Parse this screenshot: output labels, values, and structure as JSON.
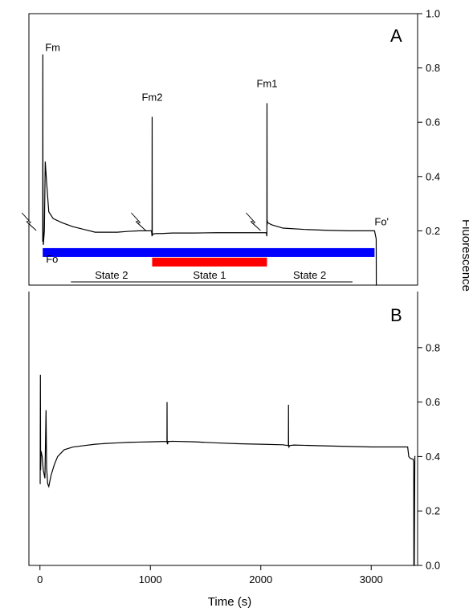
{
  "chart_data": {
    "type": "line",
    "xlabel": "Time (s)",
    "ylabel": "Fluorescence",
    "xlim": [
      -100,
      3420
    ],
    "x_ticks": [
      "0",
      "1000",
      "2000",
      "3000"
    ],
    "x_tick_values": [
      0,
      1000,
      2000,
      3000
    ],
    "panels": [
      {
        "panel": "A",
        "ylim": [
          0.0,
          1.0
        ],
        "y_ticks": [
          "0.2",
          "0.4",
          "0.6",
          "0.8",
          "1.0"
        ],
        "y_tick_values": [
          0.2,
          0.4,
          0.6,
          0.8,
          1.0
        ],
        "series": [
          {
            "x": [
              25,
              26,
              27,
              28,
              29,
              30,
              31,
              40,
              48,
              60,
              80,
              120,
              200,
              300,
              400,
              500,
              600,
              700,
              800,
              900,
              1000,
              1010,
              1015,
              1016,
              1017,
              1018,
              1020,
              1025,
              1050,
              1100,
              1200,
              1400,
              1600,
              1800,
              2000,
              2050,
              2055,
              2056,
              2057,
              2058,
              2060,
              2070,
              2100,
              2200,
              2400,
              2600,
              2800,
              3000,
              3030,
              3040,
              3045,
              3046,
              3048,
              3050
            ],
            "y": [
              0.16,
              0.85,
              0.42,
              0.33,
              0.22,
              0.15,
              0.15,
              0.2,
              0.455,
              0.38,
              0.27,
              0.245,
              0.23,
              0.215,
              0.205,
              0.195,
              0.195,
              0.195,
              0.198,
              0.2,
              0.2,
              0.2,
              0.18,
              0.62,
              0.2,
              0.19,
              0.185,
              0.188,
              0.19,
              0.19,
              0.192,
              0.192,
              0.193,
              0.193,
              0.193,
              0.193,
              0.18,
              0.67,
              0.22,
              0.24,
              0.232,
              0.228,
              0.222,
              0.21,
              0.205,
              0.202,
              0.2,
              0.2,
              0.2,
              0.18,
              0.17,
              0.0,
              0.0,
              0.0
            ]
          }
        ],
        "annotations": [
          {
            "text": "Fm",
            "x": 25,
            "y": 0.85
          },
          {
            "text": "Fo",
            "x": 25,
            "y": 0.16
          },
          {
            "text": "Fm2",
            "x": 1016,
            "y": 0.62
          },
          {
            "text": "Fm1",
            "x": 2056,
            "y": 0.67
          },
          {
            "text": "Fo'",
            "x": 3030,
            "y": 0.2
          }
        ],
        "bars": [
          {
            "color": "#0000ff",
            "x_start": 25,
            "x_end": 3030,
            "y": 0.12
          },
          {
            "color": "#ff0000",
            "x_start": 1016,
            "x_end": 2056,
            "y": 0.085
          }
        ],
        "state_labels": [
          {
            "text": "State 2",
            "x_start": 280,
            "x_end": 1016
          },
          {
            "text": "State 1",
            "x_start": 1016,
            "x_end": 2056
          },
          {
            "text": "State 2",
            "x_start": 2056,
            "x_end": 2830
          }
        ],
        "flash_markers": [
          25,
          1016,
          2056
        ]
      },
      {
        "panel": "B",
        "ylim": [
          0.0,
          1.0
        ],
        "y_ticks": [
          "0.0",
          "0.2",
          "0.4",
          "0.6",
          "0.8"
        ],
        "y_tick_values": [
          0.0,
          0.2,
          0.4,
          0.6,
          0.8
        ],
        "series": [
          {
            "x": [
              0,
              2,
              4,
              6,
              10,
              20,
              30,
              45,
              55,
              60,
              70,
              80,
              100,
              130,
              160,
              220,
              300,
              400,
              500,
              600,
              700,
              800,
              900,
              1000,
              1100,
              1150,
              1151,
              1152,
              1155,
              1160,
              1200,
              1400,
              1600,
              1800,
              2000,
              2200,
              2250,
              2251,
              2252,
              2255,
              2260,
              2300,
              2500,
              2800,
              3000,
              3200,
              3330,
              3340,
              3350,
              3360,
              3380,
              3385,
              3386,
              3390,
              3395,
              3400
            ],
            "y": [
              0.3,
              0.3,
              0.7,
              0.35,
              0.42,
              0.4,
              0.35,
              0.32,
              0.57,
              0.36,
              0.3,
              0.29,
              0.33,
              0.37,
              0.4,
              0.425,
              0.435,
              0.44,
              0.445,
              0.448,
              0.45,
              0.452,
              0.453,
              0.454,
              0.455,
              0.455,
              0.6,
              0.45,
              0.445,
              0.455,
              0.456,
              0.454,
              0.45,
              0.447,
              0.445,
              0.443,
              0.44,
              0.59,
              0.44,
              0.435,
              0.44,
              0.442,
              0.44,
              0.437,
              0.435,
              0.435,
              0.435,
              0.4,
              0.395,
              0.392,
              0.39,
              0.38,
              0.0,
              0.0,
              0.4,
              0.4
            ]
          }
        ]
      }
    ],
    "colors": {
      "line": "#000000",
      "blue_bar": "#0000ff",
      "red_bar": "#ff0000"
    }
  }
}
